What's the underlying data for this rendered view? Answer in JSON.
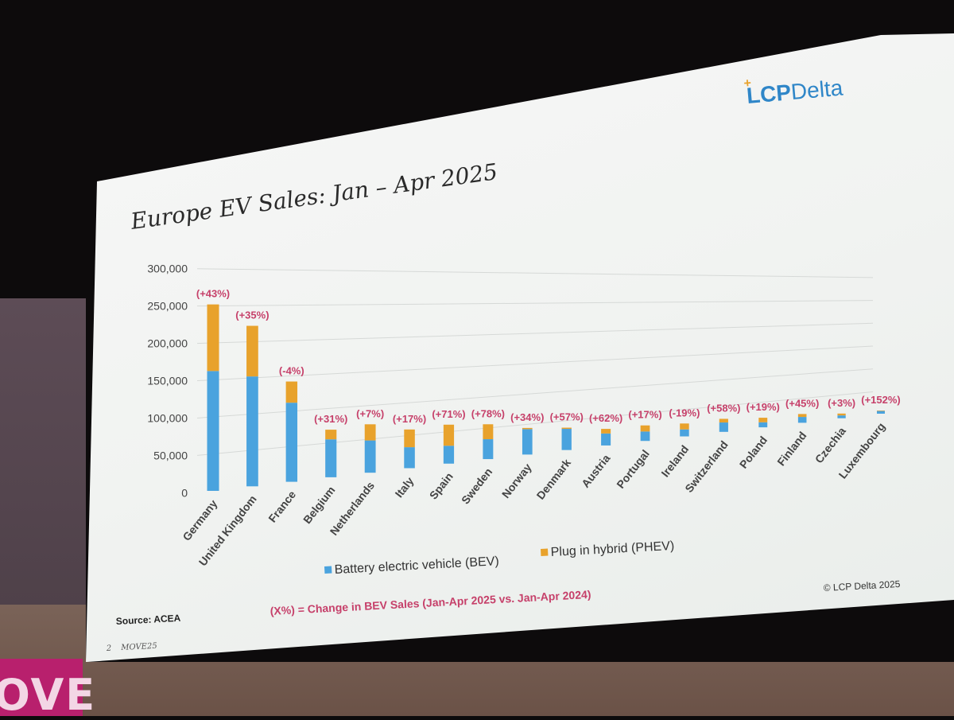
{
  "slide": {
    "logo_prefix": "LCP",
    "logo_suffix": "Delta",
    "source": "Source: ACEA",
    "copyright": "© LCP Delta 2025",
    "footnote": "(X%) = Change in BEV Sales (Jan-Apr 2025 vs. Jan-Apr 2024)",
    "page_number": "2",
    "event": "MOVE25",
    "venue_banner": "OVE"
  },
  "chart_data": {
    "type": "bar",
    "stacked": true,
    "title": "Europe EV Sales: Jan – Apr 2025",
    "xlabel": "",
    "ylabel": "",
    "ylim": [
      0,
      300000
    ],
    "yticks": [
      "300,000",
      "250,000",
      "200,000",
      "150,000",
      "100,000",
      "50,000",
      "0"
    ],
    "grid": true,
    "legend_position": "bottom",
    "categories": [
      "Germany",
      "United Kingdom",
      "France",
      "Belgium",
      "Netherlands",
      "Italy",
      "Spain",
      "Sweden",
      "Norway",
      "Denmark",
      "Austria",
      "Portugal",
      "Ireland",
      "Switzerland",
      "Poland",
      "Finland",
      "Czechia",
      "Luxembourg"
    ],
    "series": [
      {
        "name": "Battery electric vehicle (BEV)",
        "color": "#4aa3de",
        "values": [
          162000,
          152000,
          112000,
          55000,
          48000,
          32000,
          28000,
          32000,
          42000,
          36000,
          21000,
          17000,
          13000,
          18000,
          10000,
          12000,
          6000,
          6000
        ]
      },
      {
        "name": "Plug in hybrid (PHEV)",
        "color": "#e8a22c",
        "values": [
          90000,
          70000,
          30000,
          14000,
          24000,
          27000,
          33000,
          24000,
          2000,
          2000,
          8000,
          11000,
          11000,
          7000,
          9000,
          6000,
          4000,
          1000
        ]
      }
    ],
    "annotations": [
      "(+43%)",
      "(+35%)",
      "(-4%)",
      "(+31%)",
      "(+7%)",
      "(+17%)",
      "(+71%)",
      "(+78%)",
      "(+34%)",
      "(+57%)",
      "(+62%)",
      "(+17%)",
      "(-19%)",
      "(+58%)",
      "(+19%)",
      "(+45%)",
      "(+3%)",
      "(+152%)"
    ]
  }
}
